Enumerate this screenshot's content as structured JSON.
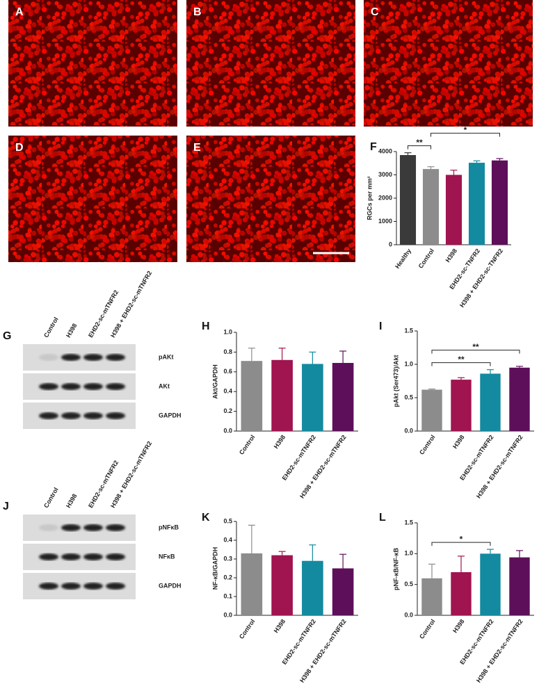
{
  "panels": [
    "A",
    "B",
    "C",
    "D",
    "E"
  ],
  "blots": [
    {
      "panel": "G",
      "lanes": [
        "Control",
        "H398",
        "EHD2-sc-mTNFR2",
        "H398 + EHD2-sc-mTNFR2"
      ],
      "rows": [
        "pAKt",
        "AKt",
        "GAPDH"
      ]
    },
    {
      "panel": "J",
      "lanes": [
        "Control",
        "H398",
        "EHD2-sc-mTNFR2",
        "H398 + EHD2-sc-mTNFR2"
      ],
      "rows": [
        "pNFκB",
        "NFκB",
        "GAPDH"
      ]
    }
  ],
  "chart_data": [
    {
      "type": "bar",
      "panel": "F",
      "ylabel": "RGCs per mm²",
      "categories": [
        "Healthy",
        "Control",
        "H398",
        "EHD2-sc-TNFR2",
        "H398 + EHD2-sc-TNFR2"
      ],
      "values": [
        3850,
        3250,
        3000,
        3520,
        3620
      ],
      "errors": [
        100,
        100,
        200,
        80,
        80
      ],
      "colors": [
        "#3a3a3a",
        "#8c8c8c",
        "#a0144f",
        "#138aa0",
        "#5e0f5a"
      ],
      "ylim": [
        0,
        4000
      ],
      "yticks": [
        0,
        1000,
        2000,
        3000,
        4000
      ],
      "significance": [
        {
          "between": [
            "Healthy",
            "Control"
          ],
          "label": "**"
        },
        {
          "between": [
            "Control",
            "H398 + EHD2-sc-TNFR2"
          ],
          "label": "*"
        }
      ]
    },
    {
      "type": "bar",
      "panel": "H",
      "ylabel": "Akt/GAPDH",
      "categories": [
        "Control",
        "H398",
        "EHD2-sc-mTNFR2",
        "H398 + EHD2-sc-mTNFR2"
      ],
      "values": [
        0.71,
        0.72,
        0.68,
        0.69
      ],
      "errors": [
        0.13,
        0.12,
        0.12,
        0.12
      ],
      "colors": [
        "#8c8c8c",
        "#a0144f",
        "#138aa0",
        "#5e0f5a"
      ],
      "ylim": [
        0,
        1.0
      ],
      "yticks": [
        {
          "value": 0,
          "label": "0.0"
        },
        0.2,
        0.4,
        0.6,
        0.8,
        {
          "value": 1,
          "label": "1.0"
        }
      ],
      "significance": []
    },
    {
      "type": "bar",
      "panel": "I",
      "ylabel": "pAkt (Ser473)/Akt",
      "categories": [
        "Control",
        "H398",
        "EHD2-sc-mTNFR2",
        "H398 + EHD2-sc-mTNFR2"
      ],
      "values": [
        0.62,
        0.77,
        0.86,
        0.95
      ],
      "errors": [
        0.01,
        0.03,
        0.06,
        0.02
      ],
      "colors": [
        "#8c8c8c",
        "#a0144f",
        "#138aa0",
        "#5e0f5a"
      ],
      "ylim": [
        0,
        1.5
      ],
      "yticks": [
        {
          "value": 0,
          "label": "0.0"
        },
        0.5,
        {
          "value": 1,
          "label": "1.0"
        },
        1.5
      ],
      "significance": [
        {
          "between": [
            "Control",
            "EHD2-sc-mTNFR2"
          ],
          "label": "**"
        },
        {
          "between": [
            "Control",
            "H398 + EHD2-sc-mTNFR2"
          ],
          "label": "**"
        }
      ]
    },
    {
      "type": "bar",
      "panel": "K",
      "ylabel": "NF-κB/GAPDH",
      "categories": [
        "Control",
        "H398",
        "EHD2-sc-mTNFR2",
        "H398 + EHD2-sc-mTNFR2"
      ],
      "values": [
        0.33,
        0.32,
        0.29,
        0.25
      ],
      "errors": [
        0.15,
        0.02,
        0.085,
        0.075
      ],
      "colors": [
        "#8c8c8c",
        "#a0144f",
        "#138aa0",
        "#5e0f5a"
      ],
      "ylim": [
        0,
        0.5
      ],
      "yticks": [
        {
          "value": 0,
          "label": "0.0"
        },
        0.1,
        0.2,
        0.3,
        0.4,
        0.5
      ],
      "significance": []
    },
    {
      "type": "bar",
      "panel": "L",
      "ylabel": "pNF-κB/NF-κB",
      "categories": [
        "Control",
        "H398",
        "EHD2-sc-mTNFR2",
        "H398 + EHD2-sc-mTNFR2"
      ],
      "values": [
        0.6,
        0.7,
        1.0,
        0.94
      ],
      "errors": [
        0.23,
        0.26,
        0.07,
        0.11
      ],
      "colors": [
        "#8c8c8c",
        "#a0144f",
        "#138aa0",
        "#5e0f5a"
      ],
      "ylim": [
        0,
        1.5
      ],
      "yticks": [
        {
          "value": 0,
          "label": "0.0"
        },
        0.5,
        {
          "value": 1,
          "label": "1.0"
        },
        1.5
      ],
      "significance": [
        {
          "between": [
            "Control",
            "EHD2-sc-mTNFR2"
          ],
          "label": "*"
        }
      ]
    }
  ]
}
